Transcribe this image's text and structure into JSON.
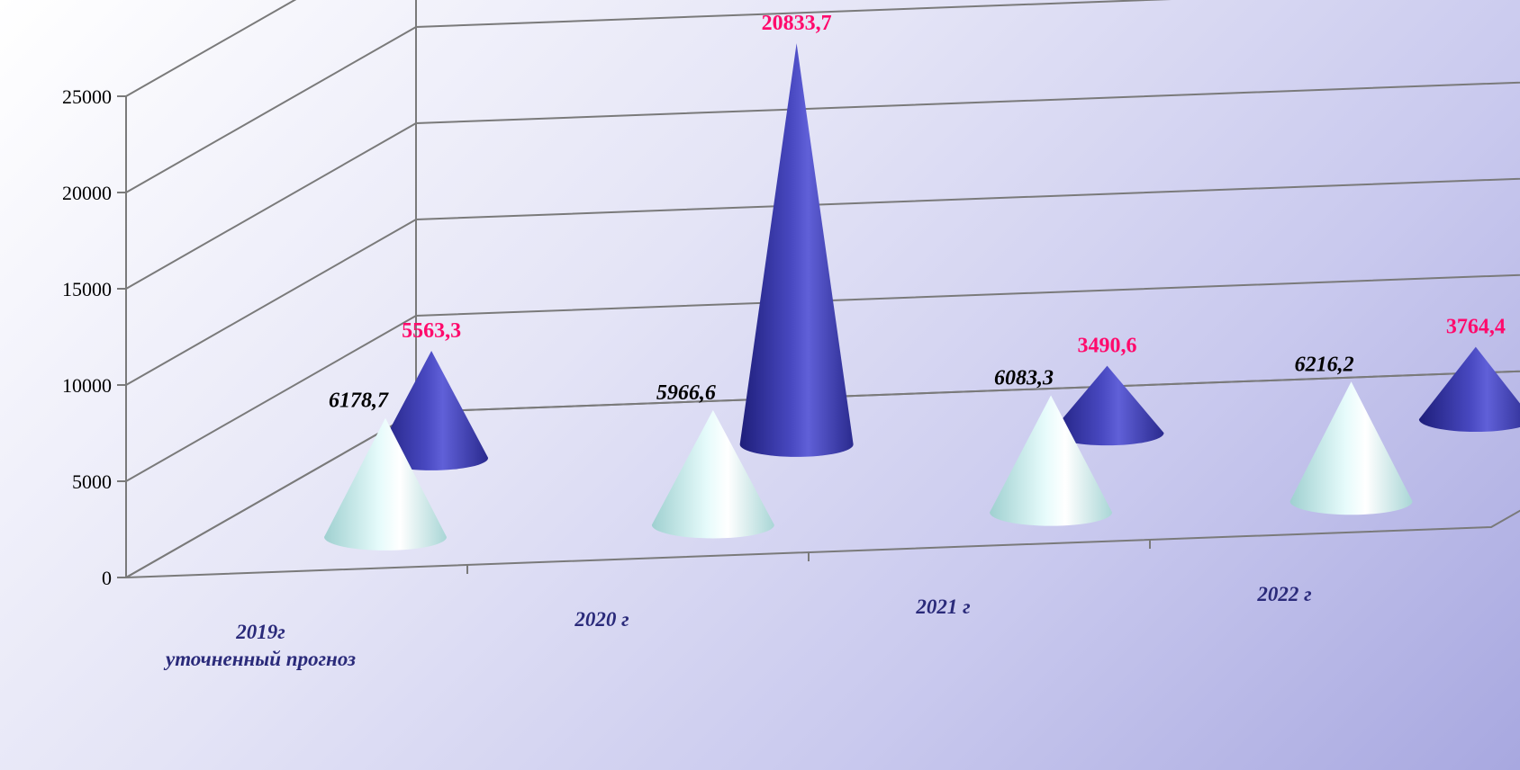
{
  "chart_data": {
    "type": "bar",
    "style": "3d-cone",
    "categories": [
      "2019г\nуточненный прогноз",
      "2020 г",
      "2021 г",
      "2022 г"
    ],
    "series": [
      {
        "values": [
          6178.7,
          5966.6,
          6083.3,
          6216.2
        ],
        "labels": [
          "6178,7",
          "5966,6",
          "6083,3",
          "6216,2"
        ],
        "color": "#d8f4f4",
        "label_color": "#000000"
      },
      {
        "values": [
          5563.3,
          20833.7,
          3490.6,
          3764.4
        ],
        "labels": [
          "5563,3",
          "20833,7",
          "3490,6",
          "3764,4"
        ],
        "color": "#3b3ba8",
        "label_color": "#ff0a6c"
      }
    ],
    "yticks": [
      "0",
      "5000",
      "10000",
      "15000",
      "20000",
      "25000"
    ],
    "ylim": [
      0,
      25000
    ],
    "grid": true,
    "legend": "none",
    "title": "",
    "xlabel": "",
    "ylabel": ""
  }
}
